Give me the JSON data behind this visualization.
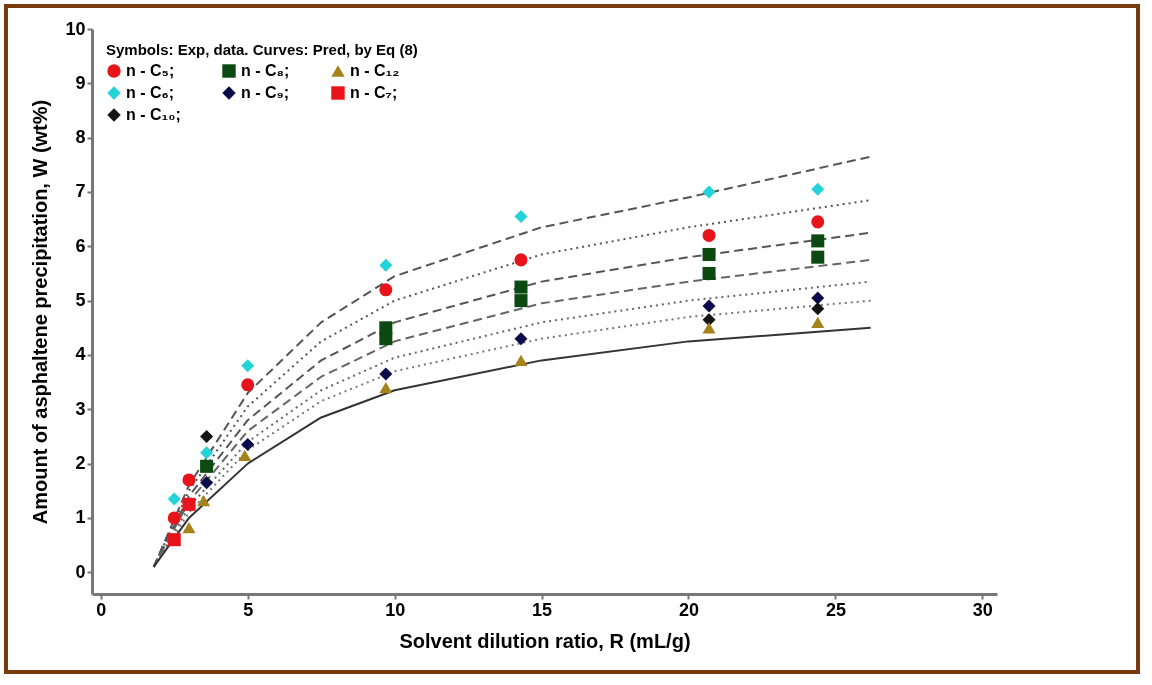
{
  "chart_data": {
    "type": "scatter",
    "xlabel": "Solvent dilution ratio, R (mL/g)",
    "ylabel": "Amount of asphaltene precipitation, W (wt%)",
    "legend_title": "Symbols: Exp, data. Curves: Pred, by Eq (8)",
    "legend": "top left",
    "grid": false,
    "xlim": [
      -0.3,
      30.5
    ],
    "ylim": [
      -0.4,
      10
    ],
    "xticks": [
      0,
      5,
      10,
      15,
      20,
      25,
      30
    ],
    "yticks": [
      0,
      1,
      2,
      3,
      4,
      5,
      6,
      7,
      8,
      9,
      10
    ],
    "series": [
      {
        "name": "n - C₅;",
        "type": "scatter",
        "marker": "circle",
        "color": "#e8141b",
        "x": [
          2.5,
          3,
          5,
          9.7,
          14.3,
          20.7,
          24.4
        ],
        "values": [
          1.0,
          1.7,
          3.45,
          5.2,
          5.75,
          6.2,
          6.45
        ]
      },
      {
        "name": "n - C₆;",
        "type": "scatter",
        "marker": "diamond",
        "color": "#22d3d8",
        "x": [
          2.5,
          3.6,
          5,
          9.7,
          14.3,
          20.7,
          24.4
        ],
        "values": [
          1.35,
          2.2,
          3.8,
          5.65,
          6.55,
          7.0,
          7.05
        ]
      },
      {
        "name": "n - C₇;",
        "type": "scatter",
        "marker": "square",
        "color": "#e8141b",
        "colors": [
          "#e8141b",
          "#e8141b",
          "#0d4a12",
          "#0d4a12",
          "#0d4a12",
          "#0d4a12"
        ],
        "x": [
          2.5,
          3,
          9.7,
          14.3,
          20.7,
          24.4
        ],
        "values": [
          0.6,
          1.25,
          4.5,
          5.25,
          5.85,
          6.1
        ]
      },
      {
        "name": "n - C₈;",
        "type": "scatter",
        "marker": "square",
        "color": "#0d4a12",
        "x": [
          3.6,
          9.7,
          14.3,
          20.7,
          24.4
        ],
        "values": [
          1.95,
          4.3,
          5.0,
          5.5,
          5.8
        ]
      },
      {
        "name": "n - C₉;",
        "type": "scatter",
        "marker": "diamond",
        "color": "#0a0a4a",
        "x": [
          3.6,
          5,
          9.7,
          14.3,
          20.7,
          24.4
        ],
        "values": [
          1.65,
          2.35,
          3.65,
          4.3,
          4.9,
          5.05
        ]
      },
      {
        "name": "n - C₁₀;",
        "type": "scatter",
        "marker": "diamond",
        "color": "#141414",
        "x": [
          3.6,
          20.7,
          24.4
        ],
        "values": [
          2.5,
          4.65,
          4.85
        ]
      },
      {
        "name": "n - C₁₂",
        "type": "scatter",
        "marker": "triangle",
        "color": "#a5831a",
        "x": [
          3.0,
          3.5,
          4.9,
          9.7,
          14.3,
          20.7,
          24.4
        ],
        "values": [
          0.82,
          1.32,
          2.15,
          3.4,
          3.9,
          4.5,
          4.6
        ]
      },
      {
        "type": "line",
        "line_style": "dashed",
        "color": "#555555",
        "x": [
          1.8,
          3,
          5,
          7.5,
          10,
          15,
          20,
          26.2
        ],
        "values": [
          0.1,
          1.6,
          3.3,
          4.6,
          5.45,
          6.35,
          6.9,
          7.65
        ]
      },
      {
        "type": "line",
        "line_style": "dotted",
        "color": "#555555",
        "x": [
          1.8,
          3,
          5,
          7.5,
          10,
          15,
          20,
          26.2
        ],
        "values": [
          0.1,
          1.5,
          3.05,
          4.25,
          5.0,
          5.85,
          6.35,
          6.85
        ]
      },
      {
        "type": "line",
        "line_style": "dashed",
        "color": "#555555",
        "x": [
          1.8,
          3,
          5,
          7.5,
          10,
          15,
          20,
          26.2
        ],
        "values": [
          0.1,
          1.4,
          2.8,
          3.9,
          4.6,
          5.35,
          5.8,
          6.25
        ]
      },
      {
        "type": "line",
        "line_style": "dashed",
        "color": "#666666",
        "x": [
          1.8,
          3,
          5,
          7.5,
          10,
          15,
          20,
          26.2
        ],
        "values": [
          0.1,
          1.3,
          2.6,
          3.6,
          4.25,
          4.95,
          5.35,
          5.75
        ]
      },
      {
        "type": "line",
        "line_style": "dotted",
        "color": "#666666",
        "x": [
          1.8,
          3,
          5,
          7.5,
          10,
          15,
          20,
          26.2
        ],
        "values": [
          0.1,
          1.2,
          2.4,
          3.35,
          3.95,
          4.6,
          5.0,
          5.35
        ]
      },
      {
        "type": "line",
        "line_style": "dotted",
        "color": "#777777",
        "x": [
          1.8,
          3,
          5,
          7.5,
          10,
          15,
          20,
          26.2
        ],
        "values": [
          0.1,
          1.1,
          2.25,
          3.15,
          3.7,
          4.3,
          4.7,
          5.0
        ]
      },
      {
        "type": "line",
        "line_style": "solid",
        "color": "#333333",
        "x": [
          1.8,
          3,
          5,
          7.5,
          10,
          15,
          20,
          26.2
        ],
        "values": [
          0.1,
          1.0,
          2.0,
          2.85,
          3.35,
          3.9,
          4.25,
          4.5
        ]
      }
    ]
  }
}
